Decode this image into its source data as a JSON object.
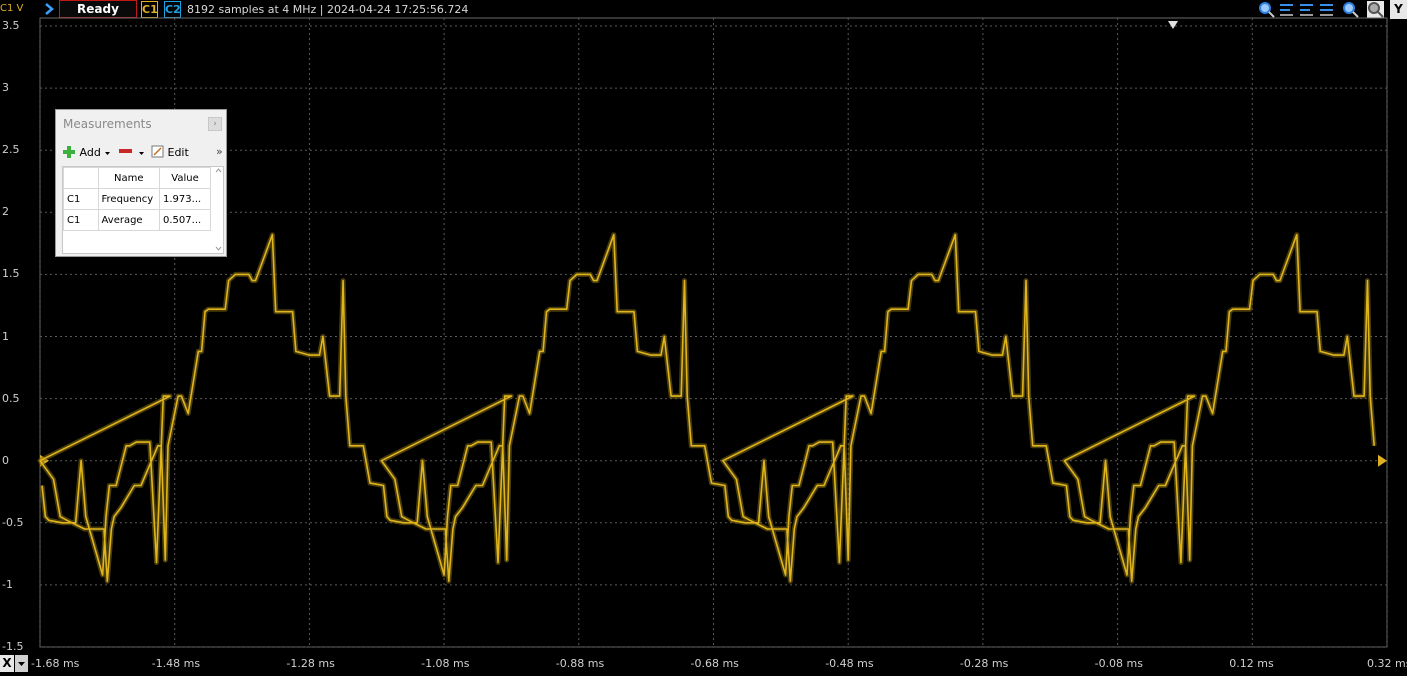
{
  "app": {
    "channel_unit": "C1 V",
    "status": "Ready",
    "channels": [
      "C1",
      "C2"
    ],
    "acquisition_info": "8192 samples at 4 MHz | 2024-04-24 17:25:56.724",
    "y_button": "Y",
    "x_button": "X"
  },
  "toolbar_icons": [
    "zoom-fit-icon",
    "zoom-horizontal-icon",
    "zoom-vertical-icon",
    "zoom-both-icon",
    "zoom-in-icon",
    "cursor-icon"
  ],
  "colors": {
    "c1": "#e0b020",
    "c2": "#1ca0e0",
    "grid": "#5a5a5a",
    "trace": "#e0b51c",
    "status_border": "#c01818"
  },
  "y_axis": {
    "labels": [
      "3.5",
      "3",
      "2.5",
      "2",
      "1.5",
      "1",
      "0.5",
      "0",
      "-0.5",
      "-1",
      "-1.5"
    ]
  },
  "x_axis": {
    "labels": [
      "-1.68 ms",
      "-1.48 ms",
      "-1.28 ms",
      "-1.08 ms",
      "-0.88 ms",
      "-0.68 ms",
      "-0.48 ms",
      "-0.28 ms",
      "-0.08 ms",
      "0.12 ms",
      "0.32 ms"
    ]
  },
  "measurements": {
    "title": "Measurements",
    "close": "›",
    "add_label": "Add",
    "edit_label": "Edit",
    "more": "»",
    "columns": [
      "",
      "Name",
      "Value"
    ],
    "rows": [
      {
        "channel": "C1",
        "name": "Frequency",
        "value": "1.973..."
      },
      {
        "channel": "C1",
        "name": "Average",
        "value": "0.507..."
      }
    ]
  },
  "chart_data": {
    "type": "line",
    "xlabel": "",
    "ylabel": "C1 V",
    "xlim": [
      -1.68,
      0.32
    ],
    "ylim": [
      -1.5,
      3.5
    ],
    "series": [
      {
        "name": "C1",
        "period_ms": 0.507,
        "x_ms": [
          -1.68,
          -1.66,
          -1.65,
          -1.64,
          -1.614,
          -1.61,
          -1.585,
          -1.58,
          -1.574,
          -1.57,
          -1.56,
          -1.54,
          -1.53,
          -1.505,
          -1.5,
          -1.494,
          -1.49,
          -1.475,
          -1.47,
          -1.46,
          -1.445,
          -1.44,
          -1.435,
          -1.43,
          -1.405,
          -1.4,
          -1.39,
          -1.37,
          -1.365,
          -1.36,
          -1.335,
          -1.33,
          -1.305,
          -1.3,
          -1.28,
          -1.265,
          -1.26,
          -1.25,
          -1.235,
          -1.23,
          -1.226,
          -1.22,
          -1.2,
          -1.19,
          -1.17,
          -1.165,
          -1.16,
          -1.14,
          -1.13,
          -1.12,
          -1.112,
          -1.105,
          -1.08,
          -1.075,
          -1.07,
          -1.06,
          -1.045,
          -1.04,
          -1.03,
          -1.01,
          -1.0,
          -0.99,
          -0.985,
          -0.98,
          -0.96
        ],
        "y_v": [
          0.0,
          -0.15,
          -0.45,
          -0.48,
          -0.55,
          -0.55,
          -0.55,
          -0.97,
          -0.55,
          -0.45,
          -0.38,
          -0.2,
          -0.2,
          0.12,
          0.12,
          -0.8,
          0.12,
          0.52,
          0.52,
          0.38,
          0.88,
          0.88,
          1.2,
          1.22,
          1.22,
          1.45,
          1.5,
          1.5,
          1.45,
          1.45,
          1.82,
          1.2,
          1.2,
          0.88,
          0.85,
          0.85,
          1.0,
          0.52,
          0.52,
          1.45,
          0.52,
          0.12,
          0.12,
          -0.18,
          -0.2,
          -0.45,
          -0.48,
          -0.5,
          -0.5,
          -0.5,
          0.0,
          -0.45,
          -0.92,
          -0.45,
          -0.2,
          -0.2,
          0.12,
          0.12,
          0.15,
          0.15,
          -0.82,
          0.52,
          0.52,
          0.52,
          1.22
        ]
      }
    ],
    "grid": true
  }
}
